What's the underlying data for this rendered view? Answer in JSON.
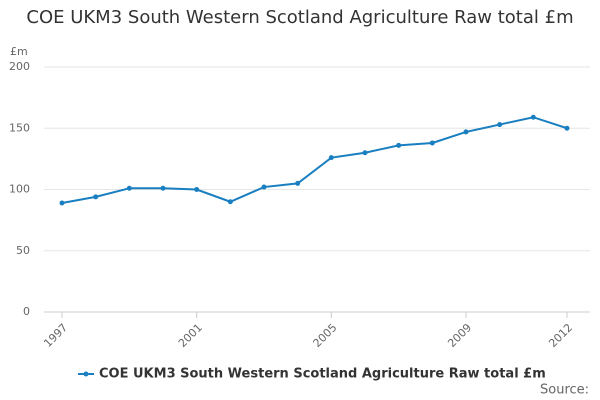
{
  "chart_data": {
    "type": "line",
    "title": "COE UKM3 South Western Scotland Agriculture Raw total £m",
    "y_label": "£m",
    "source": "Source:",
    "x": [
      1997,
      1998,
      1999,
      2000,
      2001,
      2002,
      2003,
      2004,
      2005,
      2006,
      2007,
      2008,
      2009,
      2010,
      2011,
      2012
    ],
    "series": [
      {
        "name": "COE UKM3 South Western Scotland Agriculture Raw total £m",
        "color": "#1a7fc1",
        "values": [
          89,
          94,
          101,
          101,
          100,
          90,
          102,
          105,
          126,
          130,
          136,
          138,
          147,
          153,
          159,
          150
        ]
      }
    ],
    "xlim": [
      1997,
      2012
    ],
    "xticks": [
      1997,
      2001,
      2005,
      2009,
      2012
    ],
    "ylim": [
      0,
      200
    ],
    "yticks": [
      0,
      50,
      100,
      150,
      200
    ],
    "grid": true
  }
}
